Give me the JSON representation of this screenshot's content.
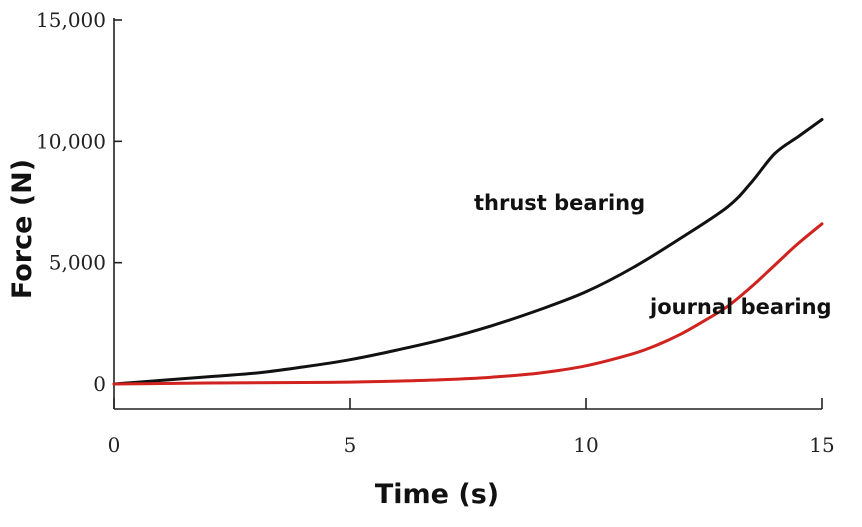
{
  "chart_data": {
    "type": "line",
    "xlabel": "Time (s)",
    "ylabel": "Force (N)",
    "xlim": [
      0,
      15
    ],
    "ylim": [
      0,
      15000
    ],
    "x_ticks": [
      "0",
      "5",
      "10",
      "15"
    ],
    "y_ticks": [
      "0",
      "5,000",
      "10,000",
      "15,000"
    ],
    "x_tick_values": [
      0,
      5,
      10,
      15
    ],
    "y_tick_values": [
      0,
      5000,
      10000,
      15000
    ],
    "grid": false,
    "legend": "none",
    "series": [
      {
        "name": "thrust bearing",
        "color": "#111111",
        "x": [
          0,
          1,
          2,
          3,
          4,
          5,
          6,
          7,
          8,
          9,
          10,
          11,
          12,
          13,
          13.5,
          14,
          14.5,
          15
        ],
        "y": [
          0,
          150,
          300,
          450,
          700,
          1000,
          1400,
          1850,
          2400,
          3050,
          3800,
          4800,
          6000,
          7300,
          8300,
          9500,
          10200,
          10900
        ]
      },
      {
        "name": "journal bearing",
        "color": "#d0221e",
        "x": [
          0,
          1,
          2,
          3,
          4,
          5,
          6,
          7,
          8,
          9,
          10,
          11,
          11.5,
          12,
          12.5,
          13,
          13.5,
          14,
          14.5,
          15
        ],
        "y": [
          0,
          20,
          40,
          50,
          60,
          80,
          120,
          180,
          280,
          450,
          750,
          1250,
          1600,
          2050,
          2600,
          3200,
          4000,
          4900,
          5800,
          6600
        ]
      }
    ]
  }
}
